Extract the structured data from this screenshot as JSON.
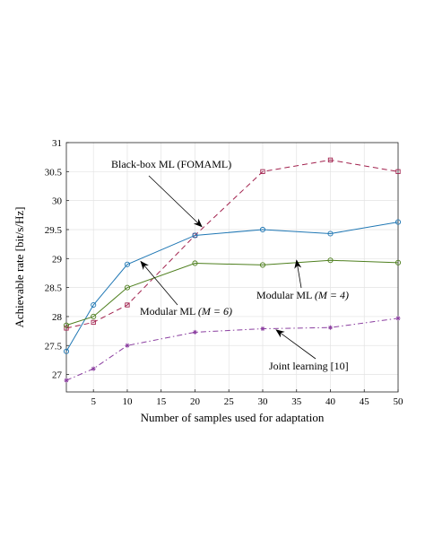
{
  "chart_data": {
    "type": "line",
    "xlabel": "Number of samples used for adaptation",
    "ylabel": "Achievable rate [bit/s/Hz]",
    "xlim": [
      1,
      50
    ],
    "ylim": [
      26.7,
      31
    ],
    "xticks": [
      5,
      10,
      15,
      20,
      25,
      30,
      35,
      40,
      45,
      50
    ],
    "yticks": [
      27,
      27.5,
      28,
      28.5,
      29,
      29.5,
      30,
      30.5,
      31
    ],
    "ytick_labels": [
      "27",
      "27.5",
      "28",
      "28.5",
      "29",
      "29.5",
      "30",
      "30.5",
      "31"
    ],
    "grid": true,
    "x": [
      1,
      5,
      10,
      20,
      30,
      40,
      50
    ],
    "series": [
      {
        "name": "Black-box ML (FOMAML)",
        "color": "#a2224e",
        "dash": "dashed",
        "marker": "square",
        "values": [
          27.8,
          27.9,
          28.2,
          29.4,
          30.5,
          30.7,
          30.5
        ]
      },
      {
        "name": "Modular ML (M = 6)",
        "color": "#1f77b4",
        "dash": "solid",
        "marker": "circle",
        "values": [
          27.4,
          28.2,
          28.9,
          29.4,
          29.5,
          29.43,
          29.63
        ]
      },
      {
        "name": "Modular ML (M = 4)",
        "color": "#4e7f1e",
        "dash": "solid",
        "marker": "circle",
        "values": [
          27.85,
          28.0,
          28.5,
          28.92,
          28.89,
          28.97,
          28.93
        ]
      },
      {
        "name": "Joint learning [10]",
        "color": "#8b3fa0",
        "dash": "dashdot",
        "marker": "star",
        "values": [
          26.9,
          27.1,
          27.5,
          27.73,
          27.79,
          27.81,
          27.97
        ]
      }
    ],
    "annotations": [
      {
        "text": "Black-box ML (FOMAML)",
        "target": [
          21,
          29.55
        ]
      },
      {
        "text_main": "Modular ML ",
        "text_italic": "(M = 6)",
        "target": [
          12,
          28.95
        ]
      },
      {
        "text_main": "Modular ML ",
        "text_italic": "(M = 4)",
        "target": [
          35,
          28.97
        ]
      },
      {
        "text": "Joint learning [10]",
        "target": [
          32,
          27.77
        ]
      }
    ]
  }
}
